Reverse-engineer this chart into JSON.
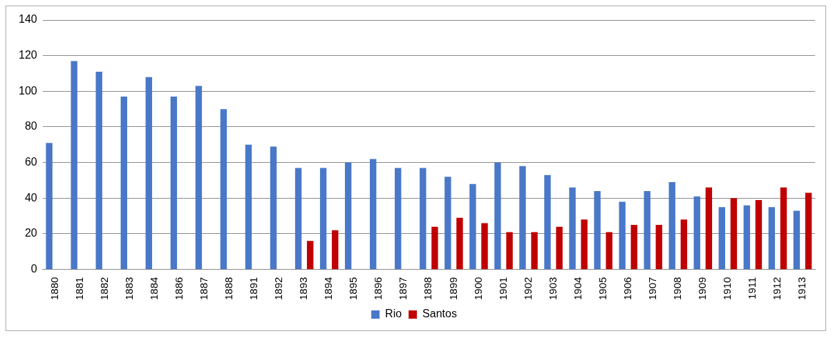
{
  "chart_data": {
    "type": "bar",
    "categories": [
      "1880",
      "1881",
      "1882",
      "1883",
      "1884",
      "1886",
      "1887",
      "1888",
      "1891",
      "1892",
      "1893",
      "1894",
      "1895",
      "1896",
      "1897",
      "1898",
      "1899",
      "1900",
      "1901",
      "1902",
      "1903",
      "1904",
      "1905",
      "1906",
      "1907",
      "1908",
      "1909",
      "1910",
      "1911",
      "1912",
      "1913"
    ],
    "series": [
      {
        "name": "Rio",
        "color": "#4a78c8",
        "values": [
          71,
          117,
          111,
          97,
          108,
          97,
          103,
          90,
          70,
          69,
          57,
          57,
          60,
          62,
          57,
          57,
          52,
          48,
          60,
          58,
          53,
          46,
          44,
          38,
          44,
          49,
          41,
          35,
          36,
          35,
          33
        ]
      },
      {
        "name": "Santos",
        "color": "#c00000",
        "values": [
          null,
          null,
          null,
          null,
          null,
          null,
          null,
          null,
          null,
          null,
          16,
          22,
          null,
          null,
          null,
          24,
          29,
          26,
          21,
          21,
          24,
          28,
          21,
          25,
          25,
          28,
          46,
          40,
          39,
          46,
          43
        ]
      }
    ],
    "ylim": [
      0,
      140
    ],
    "yticks": [
      0,
      20,
      40,
      60,
      80,
      100,
      120,
      140
    ],
    "grid": "y",
    "legend": "bottom"
  }
}
